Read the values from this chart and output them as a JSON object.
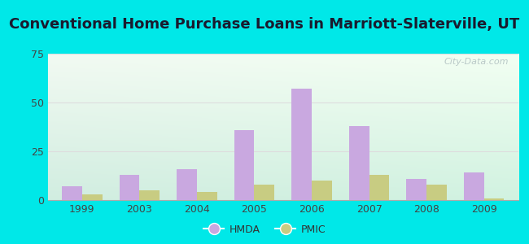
{
  "title": "Conventional Home Purchase Loans in Marriott-Slaterville, UT",
  "years": [
    1999,
    2003,
    2004,
    2005,
    2006,
    2007,
    2008,
    2009
  ],
  "hmda_values": [
    7,
    13,
    16,
    36,
    57,
    38,
    11,
    14
  ],
  "pmic_values": [
    3,
    5,
    4,
    8,
    10,
    13,
    8,
    1
  ],
  "hmda_color": "#c9a8e0",
  "pmic_color": "#c8cc82",
  "ylim": [
    0,
    75
  ],
  "yticks": [
    0,
    25,
    50,
    75
  ],
  "bar_width": 0.35,
  "outer_background": "#00e8e8",
  "grid_color": "#dddddd",
  "title_fontsize": 13,
  "tick_fontsize": 9,
  "legend_labels": [
    "HMDA",
    "PMIC"
  ],
  "watermark": "City-Data.com",
  "bg_color_topleft": "#e8f5e0",
  "bg_color_topright": "#f8fff8",
  "bg_color_bottomleft": "#c8eee0",
  "bg_color_bottomright": "#e0f8f0"
}
